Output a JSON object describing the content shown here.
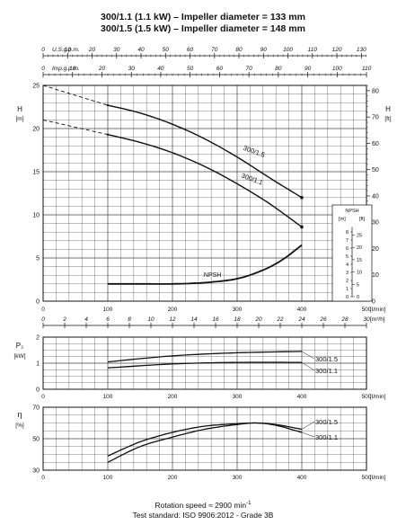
{
  "header": {
    "title_line1": "300/1.1 (1.1 kW) – Impeller diameter = 133 mm",
    "title_line2": "300/1.5 (1.5 kW) – Impeller diameter = 148 mm"
  },
  "footer": {
    "rotation_speed": "Rotation speed ≈ 2900 min",
    "rotation_unit_exp": "-1",
    "test_standard": "Test standard: ISO 9906:2012 - Grade 3B"
  },
  "chart_data": [
    {
      "type": "line",
      "name": "head-curve",
      "ylabel_left": "H",
      "ylabel_left_unit": "[m]",
      "ylabel_right": "H",
      "ylabel_right_unit": "[ft]",
      "ylim": [
        0,
        25
      ],
      "yticks_left": [
        0,
        5,
        10,
        15,
        20,
        25
      ],
      "yticks_right": [
        0,
        10,
        20,
        30,
        40,
        50,
        60,
        70,
        80
      ],
      "xlim": [
        0,
        500
      ],
      "x_axis_lpm": {
        "label": "[l/min]",
        "ticks": [
          0,
          100,
          200,
          300,
          400,
          500
        ]
      },
      "x_axis_m3h": {
        "label": "[m³/h]",
        "ticks": [
          0,
          2,
          4,
          6,
          8,
          10,
          12,
          14,
          16,
          18,
          20,
          22,
          24,
          26,
          28,
          30
        ]
      },
      "x_axis_usgpm": {
        "label": "U.S.g.p.m.",
        "ticks": [
          0,
          10,
          20,
          30,
          40,
          50,
          60,
          70,
          80,
          90,
          100,
          110,
          120,
          130
        ]
      },
      "x_axis_impgpm": {
        "label": "Imp.g.p.m.",
        "ticks": [
          0,
          10,
          20,
          30,
          40,
          50,
          60,
          70,
          80,
          90,
          100,
          110
        ]
      },
      "grid": true,
      "series": [
        {
          "name": "300/1.5",
          "x": [
            100,
            150,
            200,
            250,
            300,
            350,
            400
          ],
          "y": [
            22.7,
            21.8,
            20.5,
            18.8,
            16.7,
            14.3,
            12.0
          ],
          "extrapolated_from_zero": [
            25.0,
            22.7
          ]
        },
        {
          "name": "300/1.1",
          "x": [
            100,
            150,
            200,
            250,
            300,
            350,
            400
          ],
          "y": [
            19.3,
            18.4,
            17.2,
            15.6,
            13.6,
            11.3,
            8.6
          ],
          "extrapolated_from_zero": [
            21.0,
            19.3
          ]
        },
        {
          "name": "NPSH",
          "x": [
            100,
            150,
            200,
            250,
            300,
            340,
            370,
            400
          ],
          "y": [
            2.0,
            2.0,
            2.0,
            2.15,
            2.6,
            3.6,
            4.8,
            6.5
          ]
        }
      ],
      "npsh_scale": {
        "label": "NPSH",
        "unit_m": "[m]",
        "unit_ft": "[ft]",
        "ticks_m": [
          0,
          1,
          2,
          3,
          4,
          5,
          6,
          7,
          8
        ],
        "ticks_ft": [
          0,
          5,
          10,
          15,
          20,
          25
        ]
      }
    },
    {
      "type": "line",
      "name": "power-curve",
      "ylabel": "P₂",
      "ylabel_unit": "[kW]",
      "ylim": [
        0,
        2
      ],
      "yticks": [
        0,
        1,
        2
      ],
      "xlim": [
        0,
        500
      ],
      "xlabel": "[l/min]",
      "xticks": [
        0,
        100,
        200,
        300,
        400,
        500
      ],
      "series": [
        {
          "name": "300/1.5",
          "x": [
            100,
            200,
            300,
            400
          ],
          "y": [
            1.05,
            1.28,
            1.4,
            1.45
          ]
        },
        {
          "name": "300/1.1",
          "x": [
            100,
            200,
            300,
            400
          ],
          "y": [
            0.82,
            0.97,
            1.03,
            1.03
          ]
        }
      ]
    },
    {
      "type": "line",
      "name": "efficiency-curve",
      "ylabel": "η",
      "ylabel_unit": "[%]",
      "ylim": [
        30,
        70
      ],
      "yticks": [
        30,
        50,
        70
      ],
      "xlim": [
        0,
        500
      ],
      "xlabel": "[l/min]",
      "xticks": [
        0,
        100,
        200,
        300,
        400,
        500
      ],
      "series": [
        {
          "name": "300/1.5",
          "x": [
            100,
            150,
            200,
            250,
            300,
            330,
            360,
            400
          ],
          "y": [
            39,
            48,
            54,
            58,
            59.5,
            60,
            59,
            56
          ]
        },
        {
          "name": "300/1.1",
          "x": [
            100,
            150,
            200,
            250,
            300,
            330,
            360,
            400
          ],
          "y": [
            35,
            45,
            51,
            56,
            59,
            60,
            58.5,
            54
          ]
        }
      ]
    }
  ]
}
